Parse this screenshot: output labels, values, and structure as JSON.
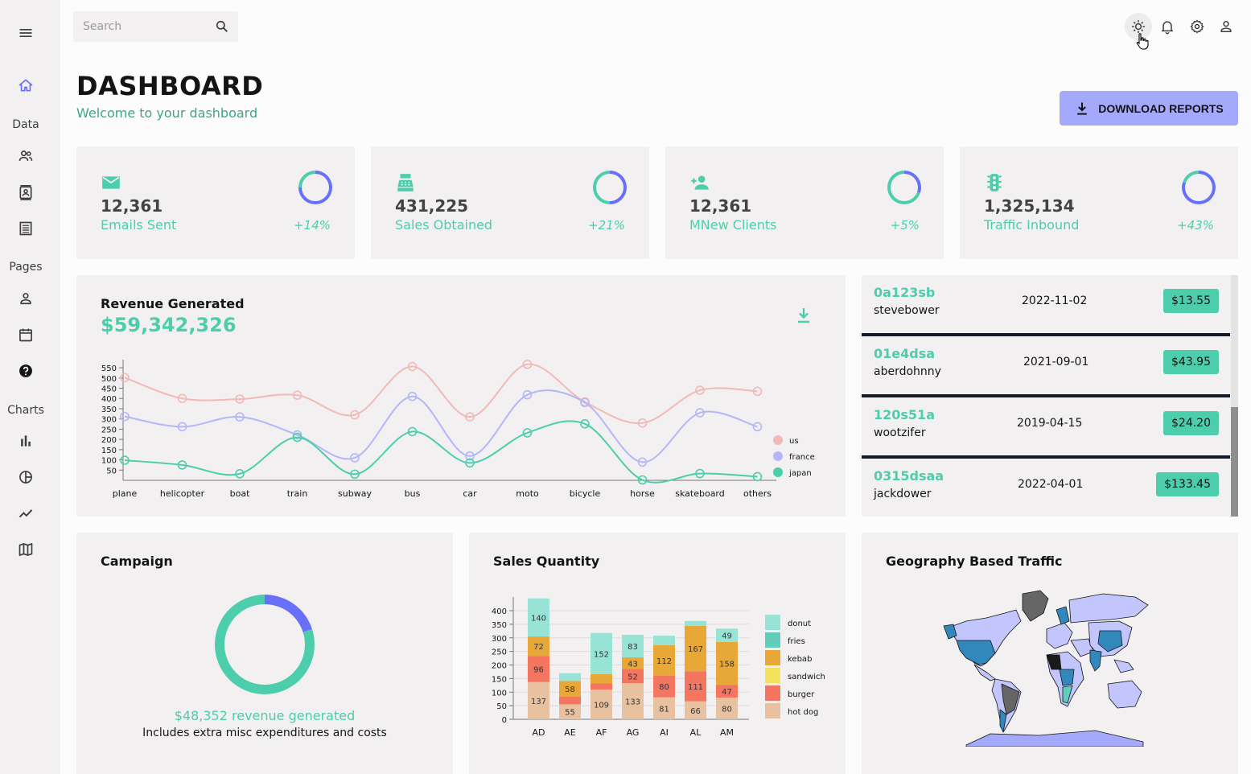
{
  "search": {
    "placeholder": "Search"
  },
  "sidebar": {
    "sections": [
      "Data",
      "Pages",
      "Charts"
    ],
    "icons": [
      "menu-icon",
      "home-icon",
      "contacts-icon",
      "contact-card-icon",
      "invoices-icon",
      "profile-icon",
      "calendar-icon",
      "help-icon",
      "bar-chart-icon",
      "pie-chart-icon",
      "line-chart-icon",
      "map-icon"
    ]
  },
  "topbar": {
    "icons": [
      "light-mode-icon",
      "notifications-icon",
      "settings-icon",
      "user-icon"
    ]
  },
  "header": {
    "title": "DASHBOARD",
    "subtitle": "Welcome to your dashboard",
    "download_label": "DOWNLOAD REPORTS"
  },
  "stats": [
    {
      "value": "12,361",
      "label": "Emails Sent",
      "increase": "+14%",
      "progress": 0.75,
      "icon": "email-icon"
    },
    {
      "value": "431,225",
      "label": "Sales Obtained",
      "increase": "+21%",
      "progress": 0.5,
      "icon": "point-of-sale-icon"
    },
    {
      "value": "12,361",
      "label": "MNew Clients",
      "increase": "+5%",
      "progress": 0.3,
      "icon": "person-add-icon"
    },
    {
      "value": "1,325,134",
      "label": "Traffic Inbound",
      "increase": "+43%",
      "progress": 0.8,
      "icon": "traffic-icon"
    }
  ],
  "revenue": {
    "title": "Revenue Generated",
    "amount": "$59,342,326"
  },
  "transactions": [
    {
      "id": "0a123sb",
      "user": "stevebower",
      "date": "2022-11-02",
      "cost": "$13.55"
    },
    {
      "id": "01e4dsa",
      "user": "aberdohnny",
      "date": "2021-09-01",
      "cost": "$43.95"
    },
    {
      "id": "120s51a",
      "user": "wootzifer",
      "date": "2019-04-15",
      "cost": "$24.20"
    },
    {
      "id": "0315dsaa",
      "user": "jackdower",
      "date": "2022-04-01",
      "cost": "$133.45"
    }
  ],
  "campaign": {
    "title": "Campaign",
    "revenue_text": "$48,352 revenue generated",
    "note": "Includes extra misc expenditures and costs",
    "progress": 0.2
  },
  "sales": {
    "title": "Sales Quantity"
  },
  "geo": {
    "title": "Geography Based Traffic"
  },
  "colors": {
    "accent": "#4cceac",
    "primary_light": "#a4a9fc",
    "indigo": "#6870fa",
    "card": "#f2f0f0"
  },
  "chart_data": [
    {
      "type": "line",
      "categories": [
        "plane",
        "helicopter",
        "boat",
        "train",
        "subway",
        "bus",
        "car",
        "moto",
        "bicycle",
        "horse",
        "skateboard",
        "others"
      ],
      "series": [
        {
          "name": "us",
          "color": "#f1b9b7",
          "values": [
            502,
            400,
            397,
            416,
            320,
            556,
            310,
            567,
            383,
            280,
            440,
            435
          ]
        },
        {
          "name": "france",
          "color": "#b3b6f9",
          "values": [
            312,
            262,
            310,
            222,
            110,
            410,
            119,
            418,
            380,
            89,
            330,
            262
          ]
        },
        {
          "name": "japan",
          "color": "#4cceac",
          "values": [
            98,
            75,
            32,
            210,
            30,
            238,
            85,
            232,
            276,
            2,
            33,
            18
          ]
        }
      ],
      "yticks": [
        50,
        100,
        150,
        200,
        250,
        300,
        350,
        400,
        450,
        500,
        550
      ],
      "ylim": [
        0,
        570
      ]
    },
    {
      "type": "bar",
      "stacked": true,
      "categories": [
        "AD",
        "AE",
        "AF",
        "AG",
        "AI",
        "AL",
        "AM"
      ],
      "series": [
        {
          "name": "hot dog",
          "color": "#e8c1a0",
          "values": [
            137,
            55,
            109,
            133,
            81,
            66,
            80
          ]
        },
        {
          "name": "burger",
          "color": "#f47560",
          "values": [
            96,
            28,
            23,
            52,
            80,
            111,
            47
          ]
        },
        {
          "name": "sandwich",
          "color": "#f1e15b",
          "values": [
            0,
            0,
            0,
            0,
            0,
            0,
            0
          ]
        },
        {
          "name": "kebab",
          "color": "#e8a838",
          "values": [
            72,
            58,
            34,
            43,
            112,
            167,
            158
          ]
        },
        {
          "name": "fries",
          "color": "#61cdbb",
          "values": [
            0,
            0,
            0,
            0,
            0,
            0,
            0
          ]
        },
        {
          "name": "donut",
          "color": "#97e3d5",
          "values": [
            140,
            29,
            152,
            83,
            35,
            18,
            49
          ]
        }
      ],
      "legend_order": [
        "donut",
        "fries",
        "kebab",
        "sandwich",
        "burger",
        "hot dog"
      ],
      "yticks": [
        0,
        50,
        100,
        150,
        200,
        250,
        300,
        350,
        400
      ],
      "ylim": [
        0,
        445
      ]
    }
  ]
}
